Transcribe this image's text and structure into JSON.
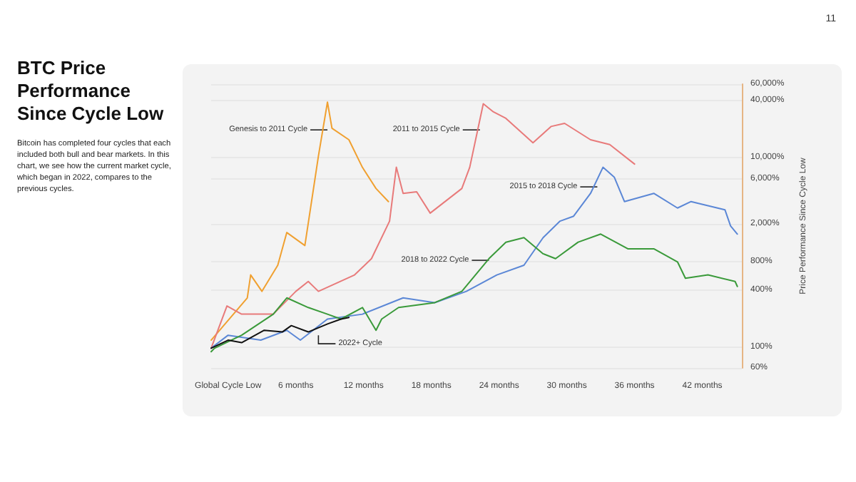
{
  "chart_data": {
    "type": "line",
    "title": "BTC Price Performance Since Cycle Low",
    "subtitle": "Bitcoin has completed four cycles that each included both bull and bear markets. In this chart, we see how the current market cycle, which began in 2022, compares to the previous cycles.",
    "ylabel": "Price Performance Since Cycle Low",
    "log": "y",
    "grid": "y",
    "marker": "none",
    "line_style": "solid",
    "xlim": [
      -1.5,
      45.5
    ],
    "xticks": [
      {
        "value": 0,
        "label": "Global Cycle Low"
      },
      {
        "value": 6,
        "label": "6 months"
      },
      {
        "value": 12,
        "label": "12 months"
      },
      {
        "value": 18,
        "label": "18 months"
      },
      {
        "value": 24,
        "label": "24 months"
      },
      {
        "value": 30,
        "label": "30 months"
      },
      {
        "value": 36,
        "label": "36 months"
      },
      {
        "value": 42,
        "label": "42 months"
      }
    ],
    "ylim": [
      60,
      60000
    ],
    "yticks": [
      {
        "value": 60,
        "label": "60%"
      },
      {
        "value": 100,
        "label": "100%"
      },
      {
        "value": 400,
        "label": "400%"
      },
      {
        "value": 800,
        "label": "800%"
      },
      {
        "value": 2000,
        "label": "2,000%"
      },
      {
        "value": 6000,
        "label": "6,000%"
      },
      {
        "value": 10000,
        "label": "10,000%"
      },
      {
        "value": 40000,
        "label": "40,000%"
      },
      {
        "value": 60000,
        "label": "60,000%"
      }
    ],
    "series": [
      {
        "color": "#f0a030",
        "x": [
          -1.5,
          1.7,
          2.0,
          3.0,
          4.4,
          5.2,
          6.8,
          8.0,
          8.8,
          9.2,
          10.7,
          11.9,
          13.1,
          14.2
        ],
        "values": [
          118,
          330,
          577,
          387,
          731,
          1620,
          1180,
          10400,
          38700,
          20500,
          15500,
          7900,
          4730,
          3440
        ]
      },
      {
        "color": "#e87a7a",
        "x": [
          -1.5,
          -0.1,
          1.2,
          4.0,
          6.0,
          7.1,
          8.0,
          11.2,
          12.7,
          14.3,
          14.9,
          15.5,
          16.7,
          17.9,
          20.7,
          21.4,
          22.6,
          23.5,
          24.6,
          27.0,
          28.6,
          29.8,
          32.1,
          33.8,
          36.0
        ],
        "values": [
          97,
          271,
          222,
          222,
          387,
          492,
          387,
          577,
          857,
          2140,
          7930,
          4200,
          4370,
          2600,
          4730,
          7930,
          37200,
          30500,
          26100,
          14400,
          21400,
          23100,
          15500,
          13800,
          8570
        ]
      },
      {
        "color": "#5b87d6",
        "x": [
          -1.5,
          0,
          2.9,
          5.2,
          6.4,
          8.8,
          11.9,
          15.5,
          18.3,
          21.1,
          23.8,
          26.2,
          27.9,
          29.4,
          30.6,
          32.1,
          33.2,
          34.2,
          35.1,
          37.7,
          39.8,
          41.0,
          44.0,
          44.5,
          45.1
        ],
        "values": [
          97,
          133,
          118,
          150,
          118,
          197,
          222,
          330,
          294,
          387,
          577,
          731,
          1430,
          2140,
          2410,
          4200,
          7930,
          6240,
          3440,
          4200,
          2940,
          3440,
          2820,
          1900,
          1560
        ]
      },
      {
        "color": "#3a9a3a",
        "x": [
          -1.5,
          -1.2,
          1.2,
          4.0,
          5.2,
          7.1,
          8.8,
          10.0,
          11.9,
          13.1,
          13.6,
          15.1,
          18.3,
          20.7,
          23.1,
          24.6,
          26.2,
          27.9,
          29.0,
          31.0,
          33.0,
          35.4,
          37.7,
          39.8,
          40.5,
          42.5,
          44.9,
          45.1
        ],
        "values": [
          89,
          97,
          133,
          222,
          330,
          261,
          222,
          197,
          261,
          150,
          197,
          261,
          294,
          387,
          857,
          1280,
          1430,
          966,
          857,
          1280,
          1560,
          1090,
          1090,
          793,
          532,
          577,
          492,
          436
        ]
      },
      {
        "color": "#111111",
        "x": [
          -1.5,
          0,
          1.2,
          3.2,
          4.8,
          5.6,
          7.1,
          8.8,
          10.0,
          10.7
        ],
        "values": [
          97,
          118,
          111,
          150,
          144,
          168,
          144,
          175,
          197,
          205
        ]
      }
    ],
    "annotations": [
      {
        "text": "Genesis to 2011 Cycle",
        "x": 8.8,
        "y": 19700
      },
      {
        "text": "2011 to 2015 Cycle",
        "x": 22.3,
        "y": 19700
      },
      {
        "text": "2015 to 2018 Cycle",
        "x": 32.7,
        "y": 4920
      },
      {
        "text": "2018 to 2022 Cycle",
        "x": 23.1,
        "y": 824
      },
      {
        "text": "2022+ Cycle",
        "x": 8.0,
        "y": 133
      },
      "11"
    ]
  }
}
